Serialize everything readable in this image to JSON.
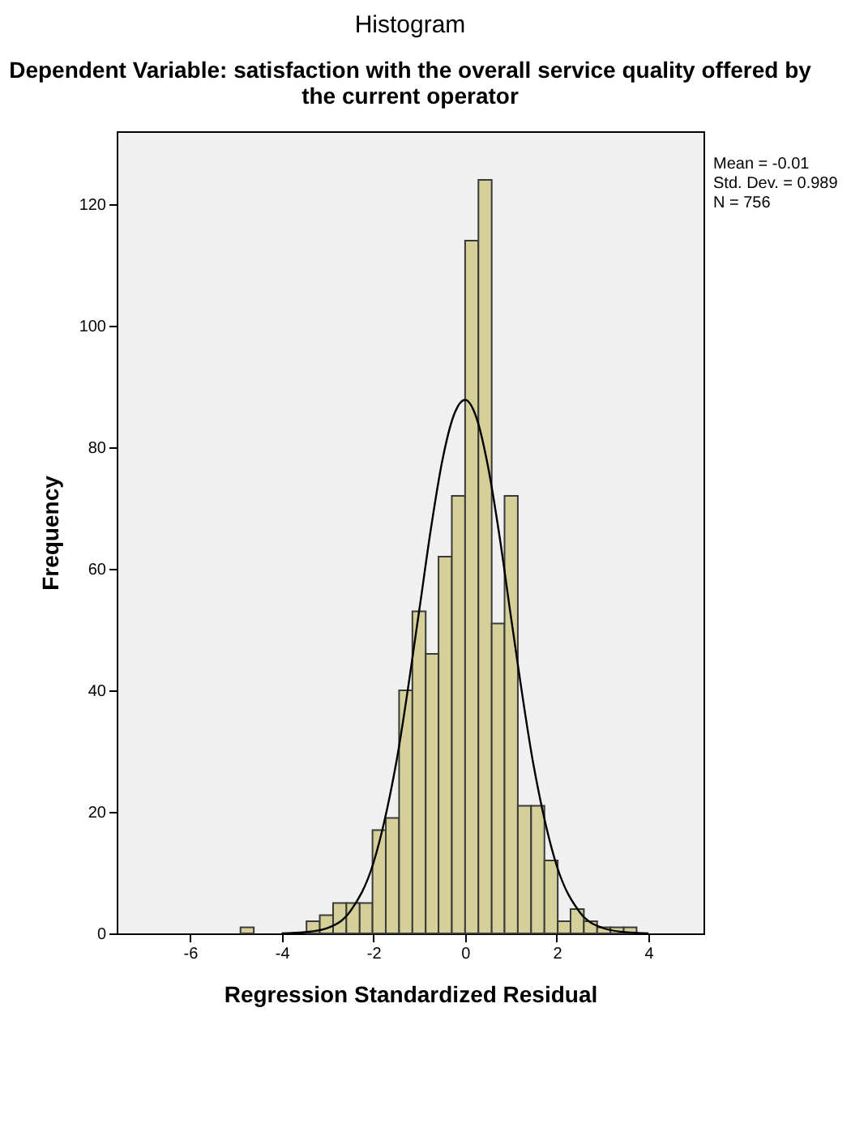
{
  "chart_data": {
    "type": "histogram",
    "title": "Histogram",
    "subtitle": "Dependent Variable: satisfaction with the overall service quality offered by the current operator",
    "xlabel": "Regression Standardized Residual",
    "ylabel": "Frequency",
    "bins": [
      -4.9,
      -4.61,
      -3.46,
      -3.17,
      -2.88,
      -2.59,
      -2.3,
      -2.02,
      -1.73,
      -1.44,
      -1.15,
      -0.86,
      -0.58,
      -0.29,
      0,
      0.29,
      0.58,
      0.86,
      1.15,
      1.44,
      1.73,
      2.02,
      2.3,
      2.59,
      2.88,
      3.17,
      3.46,
      3.74
    ],
    "values": [
      1,
      0,
      2,
      3,
      5,
      5,
      5,
      17,
      19,
      40,
      53,
      46,
      62,
      72,
      114,
      124,
      51,
      72,
      21,
      21,
      12,
      2,
      4,
      2,
      1,
      1,
      1
    ],
    "color": "#d5d09a",
    "series": [
      {
        "type": "line",
        "color": "#000000",
        "x": [
          -4,
          -3.5,
          -3,
          -2.5,
          -2,
          -1.5,
          -1,
          -0.75,
          -0.5,
          -0.25,
          0,
          0.25,
          0.5,
          0.75,
          1,
          1.5,
          2,
          2.5,
          3,
          3.5,
          4
        ],
        "values": [
          0,
          0.2,
          0.9,
          3.7,
          11.6,
          28.2,
          53.2,
          66.4,
          77.7,
          85.2,
          87.8,
          84.8,
          76.8,
          65.4,
          52.1,
          27.4,
          11.1,
          3.5,
          0.9,
          0.2,
          0
        ]
      }
    ],
    "xlim": [
      -7.6,
      5.2
    ],
    "ylim": [
      0,
      132
    ],
    "xticks": [
      -6,
      -4,
      -2,
      0,
      2,
      4
    ],
    "yticks": [
      0,
      20,
      40,
      60,
      80,
      100,
      120
    ],
    "annotations": [
      "Mean = -0.01",
      "Std. Dev. = 0.989",
      "N = 756"
    ],
    "grid": false
  }
}
